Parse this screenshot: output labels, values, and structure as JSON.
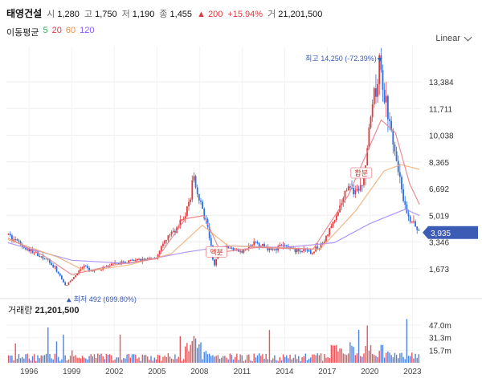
{
  "header": {
    "name": "태영건설",
    "open_label": "시",
    "open": "1,280",
    "high_label": "고",
    "high": "1,750",
    "low_label": "저",
    "low": "1,190",
    "close_label": "종",
    "close": "1,455",
    "change": "▲ 200",
    "change_pct": "+15.94%",
    "volume_label": "거",
    "volume": "21,201,500"
  },
  "ma_legend": {
    "label": "이동평균",
    "periods": [
      {
        "text": "5",
        "color": "#3aa756"
      },
      {
        "text": "20",
        "color": "#e03a3e"
      },
      {
        "text": "60",
        "color": "#f08a3c"
      },
      {
        "text": "120",
        "color": "#8b5cf6"
      }
    ]
  },
  "scale_mode": "Linear",
  "volume_title": {
    "label": "거래량",
    "value": "21,201,500"
  },
  "chart_data": {
    "type": "candlestick",
    "colors": {
      "up": "#e03a3e",
      "down": "#2f6fdb",
      "ma5": "#3aa756",
      "ma20": "#e8828a",
      "ma60": "#f0b07a",
      "ma120": "#a78bfa",
      "current_tag": "#3b5bb5"
    },
    "price_axis": {
      "ticks": [
        "13,384",
        "11,711",
        "10,038",
        "8,365",
        "6,692",
        "5,019",
        "3,346",
        "1,673"
      ],
      "ylim": [
        0,
        15600
      ]
    },
    "x_axis": {
      "ticks": [
        "1996",
        "1999",
        "2002",
        "2005",
        "2008",
        "2011",
        "2014",
        "2017",
        "2020",
        "2023"
      ],
      "xlim": [
        1994.4,
        2023.6
      ]
    },
    "volume_axis": {
      "ticks": [
        "47.0m",
        "31.3m",
        "15.7m"
      ],
      "ylim": [
        0,
        60
      ]
    },
    "current_price": "3,935",
    "annotations": {
      "high": {
        "text": "최고 14,250 (-72.39%)",
        "year": 2020.7,
        "value": 14250
      },
      "low": {
        "text": "최저 492 (699.80%)",
        "year": 1998.8,
        "value": 492
      },
      "events": [
        {
          "text": "액분",
          "year": 2009.2,
          "value": 2650
        },
        {
          "text": "합분",
          "year": 2019.4,
          "value": 7600
        }
      ]
    },
    "price_points": [
      [
        1994.5,
        3800
      ],
      [
        1995.5,
        3100
      ],
      [
        1996.5,
        2600
      ],
      [
        1997.2,
        2300
      ],
      [
        1997.9,
        1600
      ],
      [
        1998.6,
        600
      ],
      [
        1999.2,
        1200
      ],
      [
        1999.8,
        1800
      ],
      [
        2000.5,
        1500
      ],
      [
        2001.3,
        1750
      ],
      [
        2002.2,
        2000
      ],
      [
        2003.0,
        2150
      ],
      [
        2004.0,
        2250
      ],
      [
        2005.0,
        2400
      ],
      [
        2005.7,
        3600
      ],
      [
        2006.5,
        4300
      ],
      [
        2007.2,
        5400
      ],
      [
        2007.6,
        7600
      ],
      [
        2008.0,
        6000
      ],
      [
        2008.6,
        4200
      ],
      [
        2009.0,
        1900
      ],
      [
        2009.5,
        2700
      ],
      [
        2010.0,
        3000
      ],
      [
        2011.0,
        2700
      ],
      [
        2012.0,
        3300
      ],
      [
        2013.0,
        2900
      ],
      [
        2014.0,
        3100
      ],
      [
        2015.0,
        2800
      ],
      [
        2016.0,
        2700
      ],
      [
        2016.8,
        3400
      ],
      [
        2017.5,
        4800
      ],
      [
        2018.0,
        5800
      ],
      [
        2018.5,
        6800
      ],
      [
        2019.0,
        6400
      ],
      [
        2019.5,
        6600
      ],
      [
        2019.9,
        10200
      ],
      [
        2020.4,
        13000
      ],
      [
        2020.7,
        14250
      ],
      [
        2021.0,
        12500
      ],
      [
        2021.4,
        11000
      ],
      [
        2021.8,
        9000
      ],
      [
        2022.2,
        7000
      ],
      [
        2022.6,
        5000
      ],
      [
        2023.0,
        4500
      ],
      [
        2023.5,
        3935
      ]
    ],
    "ma_points": {
      "ma20": [
        [
          1994.5,
          3600
        ],
        [
          1997.0,
          2500
        ],
        [
          1999.0,
          1300
        ],
        [
          2002.0,
          1900
        ],
        [
          2005.0,
          2300
        ],
        [
          2007.0,
          4800
        ],
        [
          2008.3,
          5000
        ],
        [
          2009.5,
          2700
        ],
        [
          2012.0,
          3000
        ],
        [
          2016.0,
          2900
        ],
        [
          2018.5,
          6300
        ],
        [
          2020.8,
          11000
        ],
        [
          2021.8,
          10200
        ],
        [
          2022.8,
          7000
        ],
        [
          2023.5,
          5700
        ]
      ],
      "ma60": [
        [
          1994.5,
          3500
        ],
        [
          1998.0,
          2400
        ],
        [
          2000.0,
          1500
        ],
        [
          2003.0,
          1900
        ],
        [
          2006.0,
          2600
        ],
        [
          2008.2,
          4400
        ],
        [
          2010.0,
          3100
        ],
        [
          2013.0,
          3000
        ],
        [
          2016.5,
          2900
        ],
        [
          2019.0,
          5300
        ],
        [
          2021.0,
          7800
        ],
        [
          2022.2,
          8200
        ],
        [
          2023.5,
          7900
        ]
      ],
      "ma120": [
        [
          1994.5,
          3300
        ],
        [
          1999.0,
          2200
        ],
        [
          2003.0,
          2000
        ],
        [
          2007.0,
          2700
        ],
        [
          2010.0,
          3100
        ],
        [
          2014.0,
          3000
        ],
        [
          2017.5,
          3300
        ],
        [
          2020.0,
          4500
        ],
        [
          2022.5,
          5400
        ],
        [
          2023.5,
          5000
        ]
      ]
    }
  }
}
